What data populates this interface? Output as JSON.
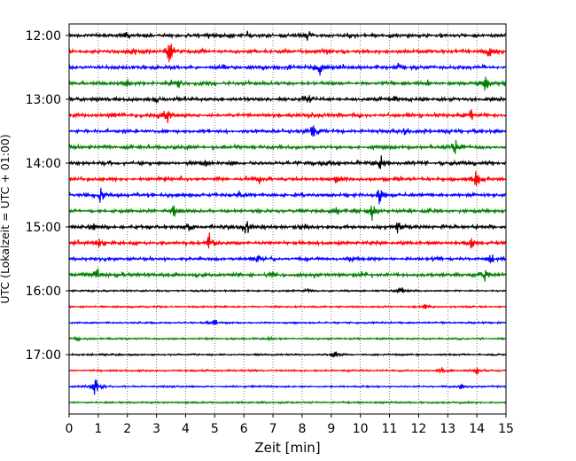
{
  "chart_data": {
    "type": "line",
    "title": "",
    "xlabel": "Zeit  [min]",
    "ylabel": "UTC (Lokalzeit = UTC + 01:00)",
    "xlim": [
      0,
      15
    ],
    "x_ticks": [
      "0",
      "1",
      "2",
      "3",
      "4",
      "5",
      "6",
      "7",
      "8",
      "9",
      "10",
      "11",
      "12",
      "13",
      "14",
      "15"
    ],
    "y_ticks": [
      "12:00",
      "13:00",
      "14:00",
      "15:00",
      "16:00",
      "17:00"
    ],
    "grid": "vertical dotted",
    "legend": "none",
    "trace_colors": [
      "#000000",
      "#ff0000",
      "#0000ff",
      "#008000"
    ],
    "traces": [
      {
        "start": "12:00",
        "events": [
          [
            6.1,
            0.8
          ],
          [
            8.2,
            1.0
          ],
          [
            2.0,
            0.5
          ]
        ]
      },
      {
        "start": "12:15",
        "events": [
          [
            3.45,
            2.2
          ],
          [
            2.2,
            0.7
          ],
          [
            8.8,
            0.6
          ],
          [
            14.4,
            1.2
          ]
        ]
      },
      {
        "start": "12:30",
        "events": [
          [
            8.6,
            1.8
          ],
          [
            5.3,
            0.5
          ],
          [
            11.3,
            0.5
          ]
        ]
      },
      {
        "start": "12:45",
        "events": [
          [
            3.8,
            1.0
          ],
          [
            14.3,
            1.8
          ],
          [
            12.3,
            0.6
          ],
          [
            2.0,
            0.5
          ]
        ]
      },
      {
        "start": "13:00",
        "events": [
          [
            8.2,
            1.1
          ],
          [
            3.0,
            0.5
          ],
          [
            11.2,
            0.5
          ]
        ]
      },
      {
        "start": "13:15",
        "events": [
          [
            3.35,
            1.8
          ],
          [
            13.8,
            1.1
          ],
          [
            1.5,
            0.5
          ]
        ]
      },
      {
        "start": "13:30",
        "events": [
          [
            8.35,
            1.8
          ],
          [
            11.5,
            0.5
          ]
        ]
      },
      {
        "start": "13:45",
        "events": [
          [
            13.25,
            1.8
          ],
          [
            6.0,
            0.5
          ]
        ]
      },
      {
        "start": "14:00",
        "events": [
          [
            10.7,
            1.8
          ],
          [
            4.7,
            0.6
          ],
          [
            9.0,
            0.6
          ]
        ]
      },
      {
        "start": "14:15",
        "events": [
          [
            3.4,
            1.2
          ],
          [
            6.5,
            0.9
          ],
          [
            14.0,
            1.8
          ],
          [
            9.2,
            0.7
          ]
        ]
      },
      {
        "start": "14:30",
        "events": [
          [
            1.1,
            1.6
          ],
          [
            10.65,
            1.7
          ],
          [
            4.0,
            0.6
          ],
          [
            5.8,
            0.8
          ]
        ]
      },
      {
        "start": "14:45",
        "events": [
          [
            10.4,
            1.6
          ],
          [
            3.6,
            1.0
          ],
          [
            9.2,
            0.6
          ]
        ]
      },
      {
        "start": "15:00",
        "events": [
          [
            6.1,
            1.5
          ],
          [
            11.3,
            1.1
          ],
          [
            0.8,
            0.8
          ],
          [
            4.1,
            0.7
          ],
          [
            8.0,
            0.6
          ]
        ]
      },
      {
        "start": "15:15",
        "events": [
          [
            4.8,
            1.8
          ],
          [
            1.0,
            0.7
          ],
          [
            13.8,
            1.0
          ]
        ]
      },
      {
        "start": "15:30",
        "events": [
          [
            6.5,
            0.6
          ],
          [
            14.5,
            1.0
          ]
        ]
      },
      {
        "start": "15:45",
        "events": [
          [
            0.95,
            1.5
          ],
          [
            14.3,
            1.2
          ],
          [
            7.0,
            0.5
          ]
        ]
      },
      {
        "start": "16:00",
        "events": [
          [
            11.4,
            0.8
          ],
          [
            8.2,
            0.5
          ]
        ]
      },
      {
        "start": "16:15",
        "events": [
          [
            12.2,
            0.6
          ]
        ]
      },
      {
        "start": "16:30",
        "events": [
          [
            5.0,
            0.5
          ]
        ]
      },
      {
        "start": "16:45",
        "events": [
          [
            0.3,
            0.5
          ],
          [
            6.9,
            0.5
          ]
        ]
      },
      {
        "start": "17:00",
        "events": [
          [
            9.1,
            1.0
          ]
        ]
      },
      {
        "start": "17:15",
        "events": [
          [
            14.0,
            0.8
          ],
          [
            12.8,
            0.5
          ]
        ]
      },
      {
        "start": "17:30",
        "events": [
          [
            0.9,
            1.8
          ],
          [
            13.5,
            0.6
          ]
        ]
      },
      {
        "start": "17:45",
        "events": []
      }
    ]
  }
}
